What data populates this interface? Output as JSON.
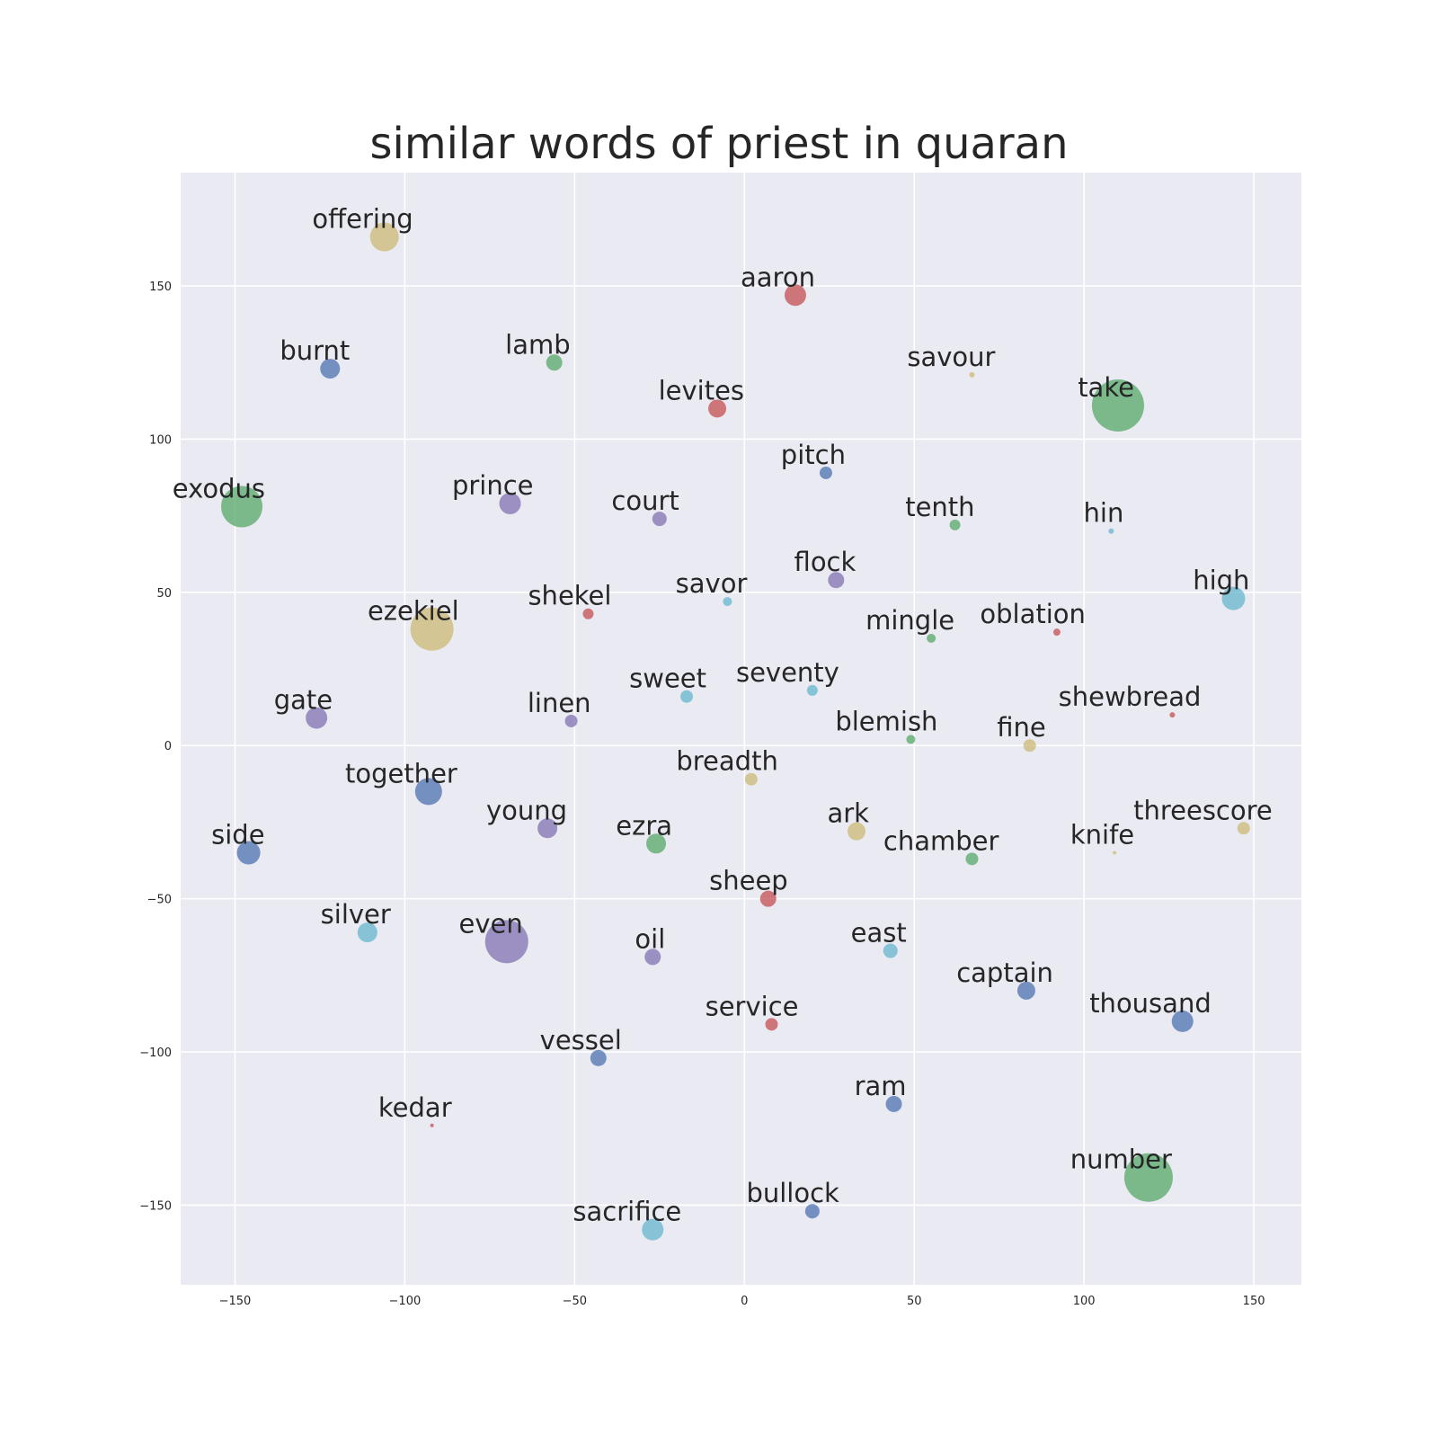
{
  "chart_data": {
    "type": "scatter",
    "title": "similar words of priest in quaran",
    "xlabel": "",
    "ylabel": "",
    "xlim": [
      -166,
      164
    ],
    "ylim": [
      -176,
      187
    ],
    "xticks": [
      -150,
      -100,
      -50,
      0,
      50,
      100,
      150
    ],
    "yticks": [
      -150,
      -100,
      -50,
      0,
      50,
      100,
      150
    ],
    "grid": true,
    "colors": {
      "blue": "#4C72B0",
      "green": "#55A868",
      "red": "#C44E52",
      "purple": "#8172B2",
      "yellow": "#CCB974",
      "cyan": "#64B5CD",
      "plot_background": "#EAEAF2",
      "grid": "#FFFFFF"
    },
    "points": [
      {
        "label": "offering",
        "x": -106,
        "y": 166,
        "size": 16,
        "color": "yellow"
      },
      {
        "label": "aaron",
        "x": 15,
        "y": 147,
        "size": 12,
        "color": "red"
      },
      {
        "label": "burnt",
        "x": -122,
        "y": 123,
        "size": 11,
        "color": "blue"
      },
      {
        "label": "lamb",
        "x": -56,
        "y": 125,
        "size": 9,
        "color": "green"
      },
      {
        "label": "savour",
        "x": 67,
        "y": 121,
        "size": 3,
        "color": "yellow"
      },
      {
        "label": "take",
        "x": 110,
        "y": 111,
        "size": 29,
        "color": "green"
      },
      {
        "label": "levites",
        "x": -8,
        "y": 110,
        "size": 10,
        "color": "red"
      },
      {
        "label": "pitch",
        "x": 24,
        "y": 89,
        "size": 7,
        "color": "blue"
      },
      {
        "label": "exodus",
        "x": -148,
        "y": 78,
        "size": 23,
        "color": "green"
      },
      {
        "label": "prince",
        "x": -69,
        "y": 79,
        "size": 12,
        "color": "purple"
      },
      {
        "label": "court",
        "x": -25,
        "y": 74,
        "size": 8,
        "color": "purple"
      },
      {
        "label": "tenth",
        "x": 62,
        "y": 72,
        "size": 6,
        "color": "green"
      },
      {
        "label": "hin",
        "x": 108,
        "y": 70,
        "size": 3,
        "color": "cyan"
      },
      {
        "label": "flock",
        "x": 27,
        "y": 54,
        "size": 9,
        "color": "purple"
      },
      {
        "label": "savor",
        "x": -5,
        "y": 47,
        "size": 5,
        "color": "cyan"
      },
      {
        "label": "high",
        "x": 144,
        "y": 48,
        "size": 13,
        "color": "cyan"
      },
      {
        "label": "shekel",
        "x": -46,
        "y": 43,
        "size": 6,
        "color": "red"
      },
      {
        "label": "ezekiel",
        "x": -92,
        "y": 38,
        "size": 24,
        "color": "yellow"
      },
      {
        "label": "mingle",
        "x": 55,
        "y": 35,
        "size": 5,
        "color": "green"
      },
      {
        "label": "oblation",
        "x": 92,
        "y": 37,
        "size": 4,
        "color": "red"
      },
      {
        "label": "seventy",
        "x": 20,
        "y": 18,
        "size": 6,
        "color": "cyan"
      },
      {
        "label": "sweet",
        "x": -17,
        "y": 16,
        "size": 7,
        "color": "cyan"
      },
      {
        "label": "gate",
        "x": -126,
        "y": 9,
        "size": 12,
        "color": "purple"
      },
      {
        "label": "linen",
        "x": -51,
        "y": 8,
        "size": 7,
        "color": "purple"
      },
      {
        "label": "shewbread",
        "x": 126,
        "y": 10,
        "size": 3,
        "color": "red"
      },
      {
        "label": "blemish",
        "x": 49,
        "y": 2,
        "size": 5,
        "color": "green"
      },
      {
        "label": "fine",
        "x": 84,
        "y": 0,
        "size": 7,
        "color": "yellow"
      },
      {
        "label": "breadth",
        "x": 2,
        "y": -11,
        "size": 7,
        "color": "yellow"
      },
      {
        "label": "together",
        "x": -93,
        "y": -15,
        "size": 15,
        "color": "blue"
      },
      {
        "label": "young",
        "x": -58,
        "y": -27,
        "size": 11,
        "color": "purple"
      },
      {
        "label": "ark",
        "x": 33,
        "y": -28,
        "size": 10,
        "color": "yellow"
      },
      {
        "label": "threescore",
        "x": 147,
        "y": -27,
        "size": 7,
        "color": "yellow"
      },
      {
        "label": "ezra",
        "x": -26,
        "y": -32,
        "size": 11,
        "color": "green"
      },
      {
        "label": "side",
        "x": -146,
        "y": -35,
        "size": 13,
        "color": "blue"
      },
      {
        "label": "knife",
        "x": 109,
        "y": -35,
        "size": 2,
        "color": "yellow"
      },
      {
        "label": "chamber",
        "x": 67,
        "y": -37,
        "size": 7,
        "color": "green"
      },
      {
        "label": "sheep",
        "x": 7,
        "y": -50,
        "size": 9,
        "color": "red"
      },
      {
        "label": "silver",
        "x": -111,
        "y": -61,
        "size": 11,
        "color": "cyan"
      },
      {
        "label": "even",
        "x": -70,
        "y": -64,
        "size": 24,
        "color": "purple"
      },
      {
        "label": "oil",
        "x": -27,
        "y": -69,
        "size": 9,
        "color": "purple"
      },
      {
        "label": "east",
        "x": 43,
        "y": -67,
        "size": 8,
        "color": "cyan"
      },
      {
        "label": "captain",
        "x": 83,
        "y": -80,
        "size": 10,
        "color": "blue"
      },
      {
        "label": "thousand",
        "x": 129,
        "y": -90,
        "size": 12,
        "color": "blue"
      },
      {
        "label": "service",
        "x": 8,
        "y": -91,
        "size": 7,
        "color": "red"
      },
      {
        "label": "vessel",
        "x": -43,
        "y": -102,
        "size": 9,
        "color": "blue"
      },
      {
        "label": "ram",
        "x": 44,
        "y": -117,
        "size": 9,
        "color": "blue"
      },
      {
        "label": "kedar",
        "x": -92,
        "y": -124,
        "size": 2,
        "color": "red"
      },
      {
        "label": "number",
        "x": 119,
        "y": -141,
        "size": 27,
        "color": "green"
      },
      {
        "label": "bullock",
        "x": 20,
        "y": -152,
        "size": 8,
        "color": "blue"
      },
      {
        "label": "sacrifice",
        "x": -27,
        "y": -158,
        "size": 12,
        "color": "cyan"
      }
    ]
  }
}
